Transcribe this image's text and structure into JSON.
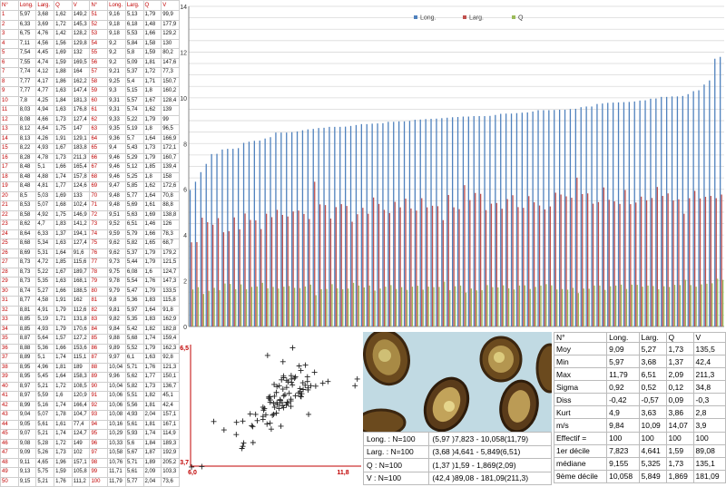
{
  "table": {
    "headers": [
      "N°",
      "Long.",
      "Larg.",
      "Q",
      "V",
      "N°",
      "Long.",
      "Larg.",
      "Q",
      "V"
    ],
    "rows": [
      [
        "1",
        "5,97",
        "3,68",
        "1,62",
        "149,2",
        "51",
        "9,16",
        "5,13",
        "1,79",
        "99,9"
      ],
      [
        "2",
        "6,33",
        "3,69",
        "1,72",
        "145,3",
        "52",
        "9,18",
        "6,18",
        "1,48",
        "177,9"
      ],
      [
        "3",
        "6,75",
        "4,76",
        "1,42",
        "128,2",
        "53",
        "9,18",
        "5,53",
        "1,66",
        "129,2"
      ],
      [
        "4",
        "7,11",
        "4,56",
        "1,56",
        "129,8",
        "54",
        "9,2",
        "5,84",
        "1,58",
        "130"
      ],
      [
        "5",
        "7,54",
        "4,45",
        "1,69",
        "132",
        "55",
        "9,2",
        "5,8",
        "1,59",
        "80,2"
      ],
      [
        "6",
        "7,55",
        "4,74",
        "1,59",
        "169,5",
        "56",
        "9,2",
        "5,09",
        "1,81",
        "147,6"
      ],
      [
        "7",
        "7,74",
        "4,12",
        "1,88",
        "164",
        "57",
        "9,21",
        "5,37",
        "1,72",
        "77,3"
      ],
      [
        "8",
        "7,77",
        "4,17",
        "1,86",
        "162,2",
        "58",
        "9,25",
        "5,4",
        "1,71",
        "150,7"
      ],
      [
        "9",
        "7,77",
        "4,77",
        "1,63",
        "147,4",
        "59",
        "9,3",
        "5,15",
        "1,8",
        "160,2"
      ],
      [
        "10",
        "7,8",
        "4,25",
        "1,84",
        "181,3",
        "60",
        "9,31",
        "5,57",
        "1,67",
        "128,4"
      ],
      [
        "11",
        "8,03",
        "4,94",
        "1,63",
        "176,8",
        "61",
        "9,31",
        "5,74",
        "1,62",
        "139"
      ],
      [
        "12",
        "8,08",
        "4,66",
        "1,73",
        "127,4",
        "62",
        "9,33",
        "5,22",
        "1,79",
        "99"
      ],
      [
        "13",
        "8,12",
        "4,64",
        "1,75",
        "147",
        "63",
        "9,35",
        "5,19",
        "1,8",
        "96,5"
      ],
      [
        "14",
        "8,13",
        "4,26",
        "1,91",
        "129,1",
        "64",
        "9,36",
        "5,7",
        "1,64",
        "166,9"
      ],
      [
        "15",
        "8,22",
        "4,93",
        "1,67",
        "183,8",
        "65",
        "9,4",
        "5,43",
        "1,73",
        "172,1"
      ],
      [
        "16",
        "8,28",
        "4,78",
        "1,73",
        "211,3",
        "66",
        "9,46",
        "5,29",
        "1,79",
        "160,7"
      ],
      [
        "17",
        "8,48",
        "5,1",
        "1,66",
        "165,4",
        "67",
        "9,46",
        "5,12",
        "1,85",
        "139,4"
      ],
      [
        "18",
        "8,48",
        "4,88",
        "1,74",
        "157,8",
        "68",
        "9,46",
        "5,25",
        "1,8",
        "158"
      ],
      [
        "19",
        "8,48",
        "4,81",
        "1,77",
        "124,6",
        "69",
        "9,47",
        "5,85",
        "1,62",
        "172,6"
      ],
      [
        "20",
        "8,5",
        "5,03",
        "1,69",
        "133",
        "70",
        "9,48",
        "5,77",
        "1,64",
        "70,8"
      ],
      [
        "21",
        "8,53",
        "5,07",
        "1,68",
        "102,4",
        "71",
        "9,48",
        "5,69",
        "1,61",
        "88,8"
      ],
      [
        "22",
        "8,58",
        "4,92",
        "1,75",
        "146,9",
        "72",
        "9,51",
        "5,63",
        "1,69",
        "138,8"
      ],
      [
        "23",
        "8,62",
        "4,7",
        "1,83",
        "141,2",
        "73",
        "9,52",
        "6,51",
        "1,46",
        "126"
      ],
      [
        "24",
        "8,64",
        "6,33",
        "1,37",
        "194,1",
        "74",
        "9,59",
        "5,79",
        "1,66",
        "78,3"
      ],
      [
        "25",
        "8,68",
        "5,34",
        "1,63",
        "127,4",
        "75",
        "9,62",
        "5,82",
        "1,65",
        "68,7"
      ],
      [
        "26",
        "8,69",
        "5,31",
        "1,64",
        "91,6",
        "76",
        "9,62",
        "5,37",
        "1,79",
        "179,2"
      ],
      [
        "27",
        "8,73",
        "4,72",
        "1,85",
        "115,6",
        "77",
        "9,73",
        "5,44",
        "1,79",
        "121,5"
      ],
      [
        "28",
        "8,73",
        "5,22",
        "1,67",
        "189,7",
        "78",
        "9,75",
        "6,08",
        "1,6",
        "124,7"
      ],
      [
        "29",
        "8,73",
        "5,35",
        "1,63",
        "168,1",
        "79",
        "9,78",
        "5,54",
        "1,76",
        "147,3"
      ],
      [
        "30",
        "8,74",
        "5,27",
        "1,66",
        "188,5",
        "80",
        "9,79",
        "5,47",
        "1,79",
        "133,5"
      ],
      [
        "31",
        "8,77",
        "4,58",
        "1,91",
        "162",
        "81",
        "9,8",
        "5,36",
        "1,83",
        "115,8"
      ],
      [
        "32",
        "8,81",
        "4,91",
        "1,79",
        "112,6",
        "82",
        "9,81",
        "5,97",
        "1,64",
        "91,8"
      ],
      [
        "33",
        "8,85",
        "5,19",
        "1,71",
        "131,8",
        "83",
        "9,82",
        "5,35",
        "1,83",
        "162,9"
      ],
      [
        "34",
        "8,85",
        "4,93",
        "1,79",
        "170,6",
        "84",
        "9,84",
        "5,42",
        "1,82",
        "182,8"
      ],
      [
        "35",
        "8,87",
        "5,64",
        "1,57",
        "127,2",
        "85",
        "9,88",
        "5,68",
        "1,74",
        "159,4"
      ],
      [
        "36",
        "8,88",
        "5,36",
        "1,66",
        "153,6",
        "86",
        "9,89",
        "5,52",
        "1,79",
        "162,3"
      ],
      [
        "37",
        "8,89",
        "5,1",
        "1,74",
        "115,1",
        "87",
        "9,97",
        "6,1",
        "1,63",
        "92,8"
      ],
      [
        "38",
        "8,95",
        "4,96",
        "1,81",
        "189",
        "88",
        "10,04",
        "5,71",
        "1,76",
        "121,3"
      ],
      [
        "39",
        "8,95",
        "5,45",
        "1,64",
        "158,3",
        "89",
        "9,96",
        "5,62",
        "1,77",
        "150,1"
      ],
      [
        "40",
        "8,97",
        "5,21",
        "1,72",
        "108,5",
        "90",
        "10,04",
        "5,82",
        "1,73",
        "136,7"
      ],
      [
        "41",
        "8,97",
        "5,59",
        "1,6",
        "120,9",
        "91",
        "10,06",
        "5,51",
        "1,82",
        "45,1"
      ],
      [
        "42",
        "8,99",
        "5,16",
        "1,74",
        "166,4",
        "92",
        "10,06",
        "5,56",
        "1,81",
        "42,4"
      ],
      [
        "43",
        "9,04",
        "5,07",
        "1,78",
        "104,7",
        "93",
        "10,08",
        "4,93",
        "2,04",
        "157,1"
      ],
      [
        "44",
        "9,05",
        "5,61",
        "1,61",
        "77,4",
        "94",
        "10,16",
        "5,61",
        "1,81",
        "167,1"
      ],
      [
        "45",
        "9,07",
        "5,21",
        "1,74",
        "124,7",
        "95",
        "10,29",
        "5,93",
        "1,74",
        "114,9"
      ],
      [
        "46",
        "9,08",
        "5,28",
        "1,72",
        "149",
        "96",
        "10,33",
        "5,6",
        "1,84",
        "189,3"
      ],
      [
        "47",
        "9,09",
        "5,26",
        "1,73",
        "102",
        "97",
        "10,58",
        "5,67",
        "1,87",
        "192,9"
      ],
      [
        "48",
        "9,11",
        "4,65",
        "1,96",
        "157,1",
        "98",
        "10,76",
        "5,71",
        "1,89",
        "205,2"
      ],
      [
        "49",
        "9,13",
        "5,75",
        "1,59",
        "105,8",
        "99",
        "11,71",
        "5,61",
        "2,09",
        "103,3"
      ],
      [
        "50",
        "9,15",
        "5,21",
        "1,76",
        "111,2",
        "100",
        "11,79",
        "5,77",
        "2,04",
        "73,6"
      ]
    ]
  },
  "chart_data": [
    {
      "type": "bar",
      "title": "",
      "series": [
        {
          "name": "Long.",
          "color": "#4f81bd"
        },
        {
          "name": "Larg.",
          "color": "#c0504d"
        },
        {
          "name": "Q",
          "color": "#9bbb59"
        }
      ],
      "ylim": [
        0,
        14
      ],
      "yticks": [
        "0",
        "2",
        "4",
        "6",
        "8",
        "10",
        "12",
        "14"
      ],
      "grid": true,
      "legend": "top-center",
      "source": "table.rows"
    },
    {
      "type": "scatter",
      "xlim": [
        6.0,
        11.8
      ],
      "ylim": [
        3.7,
        6.5
      ],
      "xtick_labels": [
        "6,0",
        "11,8"
      ],
      "ytick_labels": [
        "3,7",
        "6,5"
      ],
      "marker": "+",
      "source": "table.rows (x = Long., y = Larg.)"
    }
  ],
  "ranges": [
    {
      "label": "Long. : N=100",
      "value": "(5,97 )7,823 - 10,058(11,79)"
    },
    {
      "label": "Larg. : N=100",
      "value": "(3,68 )4,641 - 5,849(6,51)"
    },
    {
      "label": "Q : N=100",
      "value": "(1,37 )1,59 - 1,869(2,09)"
    },
    {
      "label": "V : N=100",
      "value": "(42,4 )89,08 - 181,09(211,3)"
    }
  ],
  "stats": {
    "headers": [
      "N°",
      "Long.",
      "Larg.",
      "Q",
      "V"
    ],
    "rows": [
      [
        "Moy",
        "9,09",
        "5,27",
        "1,73",
        "135,5"
      ],
      [
        "Min",
        "5,97",
        "3,68",
        "1,37",
        "42,4"
      ],
      [
        "Max",
        "11,79",
        "6,51",
        "2,09",
        "211,3"
      ],
      [
        "Sigma",
        "0,92",
        "0,52",
        "0,12",
        "34,8"
      ],
      [
        "Diss",
        "-0,42",
        "-0,57",
        "0,09",
        "-0,3"
      ],
      [
        "Kurt",
        "4,9",
        "3,63",
        "3,86",
        "2,8"
      ],
      [
        "m/s",
        "9,84",
        "10,09",
        "14,07",
        "3,9"
      ],
      [
        "Effectif =",
        "100",
        "100",
        "100",
        "100"
      ],
      [
        "1er décile",
        "7,823",
        "4,641",
        "1,59",
        "89,08"
      ],
      [
        "médiane",
        "9,155",
        "5,325",
        "1,73",
        "135,1"
      ],
      [
        "9ème décile",
        "10,058",
        "5,849",
        "1,869",
        "181,09"
      ]
    ]
  },
  "colors": {
    "long": "#4f81bd",
    "larg": "#c0504d",
    "q": "#9bbb59",
    "index_text": "#c00000",
    "photo_bg": "#b5d3de"
  }
}
